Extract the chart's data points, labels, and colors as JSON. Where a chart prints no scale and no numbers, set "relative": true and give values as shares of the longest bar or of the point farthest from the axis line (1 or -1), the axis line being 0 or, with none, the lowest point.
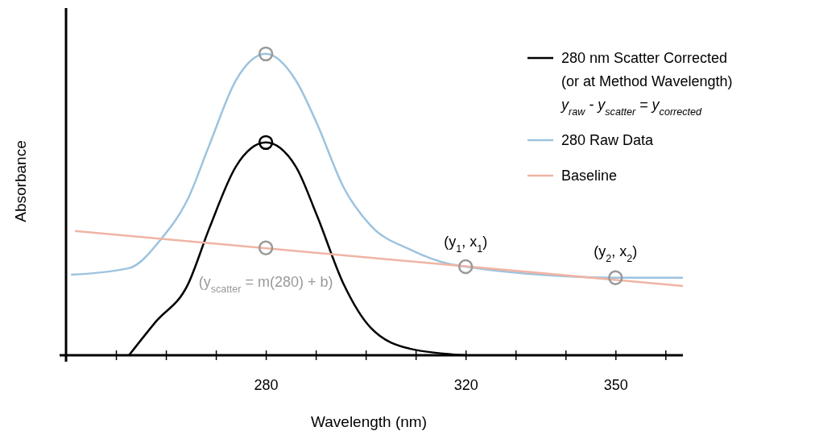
{
  "chart_data": {
    "type": "line",
    "xlabel": "Wavelength (nm)",
    "ylabel": "Absorbance",
    "relative": true,
    "xlim": [
      240,
      363.5
    ],
    "xticks": [
      {
        "value": 250,
        "label": null
      },
      {
        "value": 260,
        "label": null
      },
      {
        "value": 270,
        "label": null
      },
      280,
      {
        "value": 290,
        "label": null
      },
      {
        "value": 300,
        "label": null
      },
      {
        "value": 310,
        "label": null
      },
      320,
      {
        "value": 330,
        "label": null
      },
      {
        "value": 340,
        "label": null
      },
      350,
      {
        "value": 360,
        "label": null
      }
    ],
    "legend": "top right",
    "marker": "none",
    "line_style": "solid",
    "series": [
      {
        "name": "280 nm Scatter Corrected\n(or at Method Wavelength)\ny$_{raw}$ - y$_{scatter}$ = y$_{corrected}$",
        "color": "#000000",
        "x": [
          252.6,
          257.9,
          264.4,
          268.7,
          274,
          280,
          286,
          290.2,
          295.6,
          301,
          309,
          320
        ],
        "values": [
          0,
          0.11,
          0.235,
          0.422,
          0.626,
          0.706,
          0.626,
          0.465,
          0.235,
          0.091,
          0.021,
          0
        ]
      },
      {
        "name": "280 Raw Data",
        "color": "#9dc3de",
        "x": [
          241,
          252.6,
          259,
          264.4,
          268.7,
          274,
          280,
          286,
          290.2,
          295.6,
          301,
          309,
          317,
          320,
          336.6,
          350,
          363.5
        ],
        "values": [
          0.267,
          0.289,
          0.385,
          0.519,
          0.698,
          0.912,
          1,
          0.912,
          0.77,
          0.556,
          0.43,
          0.35,
          0.302,
          0.294,
          0.265,
          0.257,
          0.257
        ]
      },
      {
        "name": "Baseline",
        "color": "#f0b4a4",
        "x": [
          241.8,
          363.5
        ],
        "values": [
          0.412,
          0.23
        ]
      },
      {
        "type": "scatter",
        "color": "#999999",
        "marker": "circle",
        "x": [
          280,
          280,
          320,
          350
        ],
        "values": [
          1,
          0.356,
          0.294,
          0.257
        ]
      },
      {
        "type": "scatter",
        "color": "#000000",
        "marker": "circle",
        "x": [
          280
        ],
        "values": [
          0.706
        ]
      }
    ],
    "annotations": [
      {
        "text": "(y$_{scatter}$ = m(280) + b)",
        "x": 280,
        "y": 0.356
      },
      {
        "text": "(y$_{1}$, x$_{1}$)",
        "x": 320,
        "y": 0.294
      },
      {
        "text": "(y$_{2}$, x$_{2}$)",
        "x": 350,
        "y": 0.257
      }
    ]
  }
}
